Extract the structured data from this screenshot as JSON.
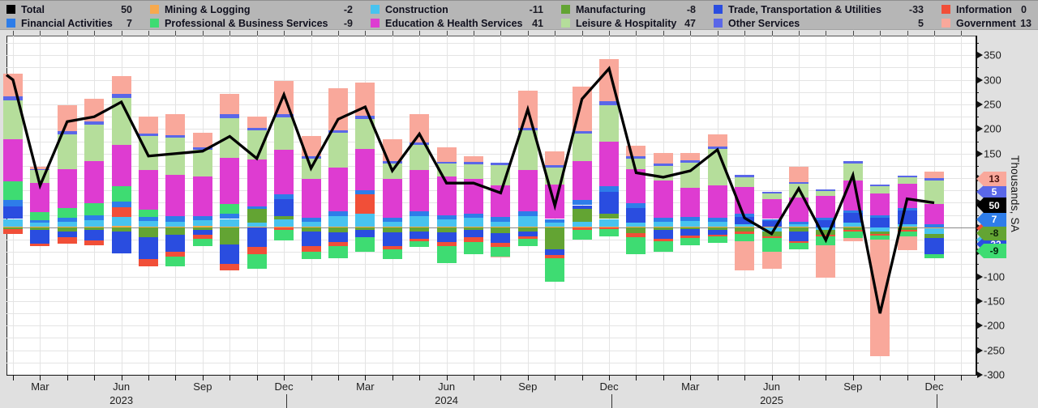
{
  "legend": {
    "items": [
      {
        "id": "total",
        "label": "Total",
        "value": "50",
        "color": "#000000"
      },
      {
        "id": "mining",
        "label": "Mining & Logging",
        "value": "-2",
        "color": "#f7a94e"
      },
      {
        "id": "construction",
        "label": "Construction",
        "value": "-11",
        "color": "#48c3ef"
      },
      {
        "id": "manufacturing",
        "label": "Manufacturing",
        "value": "-8",
        "color": "#63a433"
      },
      {
        "id": "ttu",
        "label": "Trade, Transportation & Utilities",
        "value": "-33",
        "color": "#2a4de0"
      },
      {
        "id": "information",
        "label": "Information",
        "value": "0",
        "color": "#f14f38"
      },
      {
        "id": "financial",
        "label": "Financial Activities",
        "value": "7",
        "color": "#2e7de9"
      },
      {
        "id": "pbs",
        "label": "Professional & Business Services",
        "value": "-9",
        "color": "#3edc72"
      },
      {
        "id": "eh",
        "label": "Education & Health Services",
        "value": "41",
        "color": "#de3cd1"
      },
      {
        "id": "lh",
        "label": "Leisure & Hospitality",
        "value": "47",
        "color": "#b5de9b"
      },
      {
        "id": "other",
        "label": "Other Services",
        "value": "5",
        "color": "#5a67e8"
      },
      {
        "id": "government",
        "label": "Government",
        "value": "13",
        "color": "#f9a89b"
      }
    ]
  },
  "chart_data": {
    "type": "stacked-bar-line",
    "ylabel": "Thousands, SA",
    "ylim": [
      -300,
      390
    ],
    "y_tick_step": 50,
    "y_minor_step": 25,
    "grid": true,
    "months": [
      "Feb 2023",
      "Mar 2023",
      "Apr 2023",
      "May 2023",
      "Jun 2023",
      "Jul 2023",
      "Aug 2023",
      "Sep 2023",
      "Oct 2023",
      "Nov 2023",
      "Dec 2023",
      "Jan 2024",
      "Feb 2024",
      "Mar 2024",
      "Apr 2024",
      "May 2024",
      "Jun 2024",
      "Jul 2024",
      "Aug 2024",
      "Sep 2024",
      "Oct 2024",
      "Nov 2024",
      "Dec 2024",
      "Jan 2025",
      "Feb 2025",
      "Mar 2025",
      "Apr 2025",
      "May 2025",
      "Jun 2025",
      "Jul 2025",
      "Aug 2025",
      "Sep 2025",
      "Oct 2025",
      "Nov 2025",
      "Dec 2025"
    ],
    "x_ticks": [
      {
        "index": 1,
        "label": "Mar"
      },
      {
        "index": 4,
        "label": "Jun"
      },
      {
        "index": 7,
        "label": "Sep"
      },
      {
        "index": 10,
        "label": "Dec"
      },
      {
        "index": 13,
        "label": "Mar"
      },
      {
        "index": 16,
        "label": "Jun"
      },
      {
        "index": 19,
        "label": "Sep"
      },
      {
        "index": 22,
        "label": "Dec"
      },
      {
        "index": 25,
        "label": "Mar"
      },
      {
        "index": 28,
        "label": "Jun"
      },
      {
        "index": 31,
        "label": "Sep"
      },
      {
        "index": 34,
        "label": "Dec"
      }
    ],
    "year_labels": [
      {
        "index": 4,
        "label": "2023"
      },
      {
        "index": 16,
        "label": "2024"
      },
      {
        "index": 28,
        "label": "2025"
      }
    ],
    "year_separator_indices": [
      10,
      22,
      34
    ],
    "total": {
      "label": "Total",
      "color": "#000000",
      "lead_in": 310,
      "values": [
        300,
        85,
        215,
        225,
        255,
        145,
        150,
        155,
        185,
        140,
        270,
        120,
        220,
        245,
        115,
        190,
        90,
        90,
        70,
        240,
        44,
        261,
        323,
        111,
        102,
        115,
        158,
        19,
        -13,
        79,
        -26,
        106,
        -175,
        58,
        50
      ]
    },
    "series": [
      {
        "id": "mining",
        "name": "Mining & Logging",
        "color": "#f7a94e",
        "values": [
          2,
          1,
          1,
          2,
          3,
          1,
          2,
          3,
          2,
          1,
          2,
          1,
          2,
          2,
          1,
          2,
          1,
          2,
          1,
          2,
          1,
          2,
          2,
          1,
          2,
          1,
          2,
          1,
          1,
          1,
          0,
          1,
          0,
          1,
          -2
        ]
      },
      {
        "id": "construction",
        "name": "Construction",
        "color": "#48c3ef",
        "values": [
          15,
          8,
          10,
          12,
          18,
          12,
          10,
          12,
          15,
          8,
          15,
          10,
          20,
          25,
          10,
          20,
          15,
          18,
          10,
          20,
          8,
          10,
          15,
          8,
          10,
          12,
          10,
          5,
          -8,
          5,
          -5,
          8,
          -8,
          5,
          -11
        ]
      },
      {
        "id": "manufacturing",
        "name": "Manufacturing",
        "color": "#63a433",
        "values": [
          -4,
          -6,
          -8,
          -6,
          -8,
          -20,
          -15,
          -5,
          -35,
          28,
          6,
          -8,
          -10,
          -5,
          -10,
          -8,
          -10,
          -5,
          -12,
          -8,
          -45,
          25,
          10,
          -12,
          -5,
          -4,
          -5,
          -8,
          -10,
          -8,
          -10,
          -6,
          -6,
          -6,
          -8
        ]
      },
      {
        "id": "ttu",
        "name": "Trade, Transportation & Utilities",
        "color": "#2a4de0",
        "values": [
          25,
          -28,
          -12,
          -20,
          -45,
          -45,
          -35,
          -10,
          -40,
          -40,
          35,
          -30,
          -20,
          -15,
          -28,
          -15,
          -20,
          -15,
          -20,
          -10,
          -12,
          8,
          45,
          30,
          -18,
          -12,
          -10,
          15,
          12,
          -20,
          15,
          20,
          20,
          28,
          -33
        ]
      },
      {
        "id": "information",
        "name": "Information",
        "color": "#f14f38",
        "values": [
          -9,
          -4,
          -14,
          -10,
          20,
          -15,
          -10,
          -8,
          -12,
          -15,
          -5,
          -12,
          -8,
          40,
          -6,
          -5,
          -8,
          -10,
          -8,
          -5,
          -6,
          -5,
          -4,
          -8,
          -6,
          -5,
          -4,
          -5,
          -4,
          -4,
          -4,
          -3,
          -3,
          -3,
          0
        ]
      },
      {
        "id": "financial",
        "name": "Financial Activities",
        "color": "#2e7de9",
        "values": [
          14,
          6,
          8,
          10,
          12,
          8,
          10,
          8,
          10,
          6,
          10,
          8,
          10,
          8,
          8,
          10,
          8,
          8,
          10,
          10,
          8,
          10,
          12,
          10,
          8,
          8,
          8,
          6,
          4,
          6,
          4,
          6,
          4,
          5,
          7
        ]
      },
      {
        "id": "pbs",
        "name": "Professional & Business Services",
        "color": "#3edc72",
        "values": [
          38,
          16,
          20,
          25,
          30,
          15,
          -20,
          -15,
          20,
          -30,
          -22,
          -15,
          -25,
          -30,
          -20,
          -12,
          -35,
          -25,
          -20,
          -15,
          -48,
          -20,
          -15,
          -35,
          -20,
          -15,
          -12,
          -15,
          -28,
          -12,
          -18,
          -12,
          -8,
          -10,
          -9
        ]
      },
      {
        "id": "eh",
        "name": "Education & Health Services",
        "color": "#de3cd1",
        "values": [
          85,
          60,
          80,
          85,
          85,
          80,
          85,
          80,
          95,
          95,
          90,
          80,
          90,
          85,
          80,
          85,
          80,
          70,
          65,
          85,
          70,
          80,
          90,
          70,
          75,
          60,
          65,
          55,
          40,
          48,
          45,
          60,
          45,
          50,
          41
        ]
      },
      {
        "id": "lh",
        "name": "Leisure & Hospitality",
        "color": "#b5de9b",
        "values": [
          80,
          25,
          70,
          75,
          95,
          70,
          75,
          55,
          80,
          60,
          65,
          40,
          70,
          60,
          30,
          50,
          25,
          30,
          40,
          80,
          35,
          55,
          75,
          20,
          30,
          50,
          75,
          20,
          12,
          28,
          10,
          35,
          15,
          12,
          47
        ]
      },
      {
        "id": "other",
        "name": "Other Services",
        "color": "#5a67e8",
        "values": [
          8,
          3,
          6,
          7,
          8,
          5,
          6,
          5,
          8,
          5,
          8,
          5,
          6,
          7,
          5,
          6,
          4,
          5,
          5,
          6,
          4,
          6,
          8,
          5,
          4,
          5,
          5,
          4,
          3,
          4,
          3,
          4,
          3,
          4,
          5
        ]
      },
      {
        "id": "government",
        "name": "Government",
        "color": "#f9a89b",
        "values": [
          46,
          4,
          54,
          45,
          37,
          34,
          42,
          30,
          42,
          22,
          66,
          41,
          85,
          68,
          45,
          57,
          30,
          12,
          -1,
          75,
          29,
          90,
          85,
          22,
          22,
          15,
          24,
          -59,
          -35,
          31,
          -66,
          -7,
          -237,
          -28,
          13
        ]
      }
    ],
    "last_value_badges": [
      {
        "series": "government",
        "value": "13"
      },
      {
        "series": "other",
        "value": "5"
      },
      {
        "series": "total",
        "value": "50"
      },
      {
        "series": "financial",
        "value": "7"
      },
      {
        "series": "information",
        "value": "0"
      },
      {
        "series": "manufacturing",
        "value": "-8"
      },
      {
        "series": "construction",
        "value": "-11"
      },
      {
        "series": "ttu",
        "value": "-33"
      },
      {
        "series": "pbs",
        "value": "-9"
      }
    ],
    "legend_position": "top",
    "y_axis_side": "right"
  }
}
